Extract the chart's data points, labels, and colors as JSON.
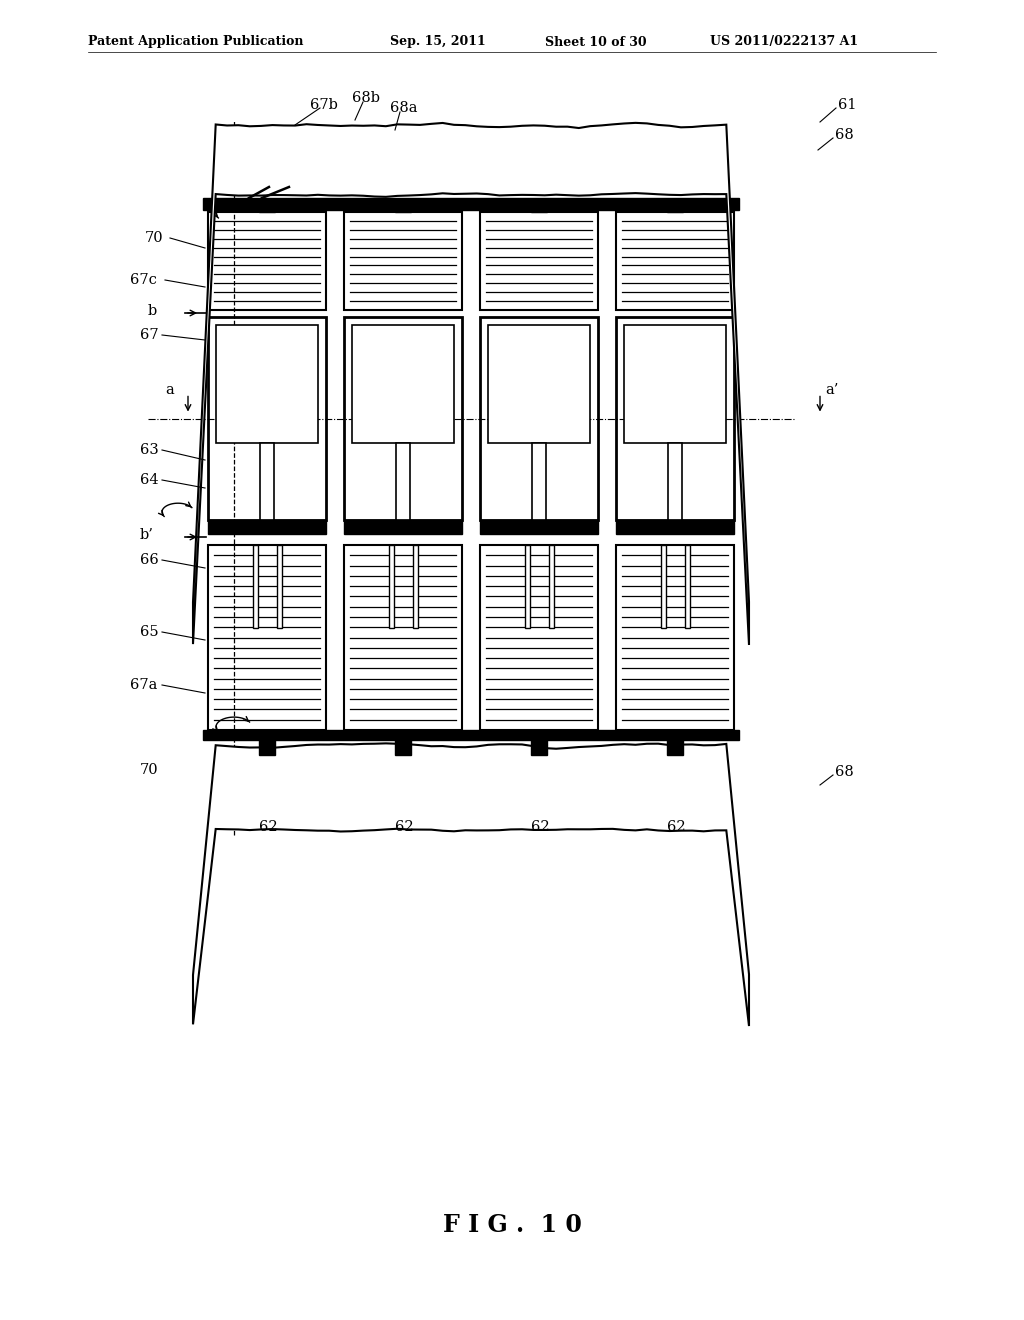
{
  "bg_color": "#ffffff",
  "header_text": "Patent Application Publication",
  "header_date": "Sep. 15, 2011",
  "header_sheet": "Sheet 10 of 30",
  "header_patent": "US 2011/0222137 A1",
  "figure_label": "F I G .  1 0"
}
